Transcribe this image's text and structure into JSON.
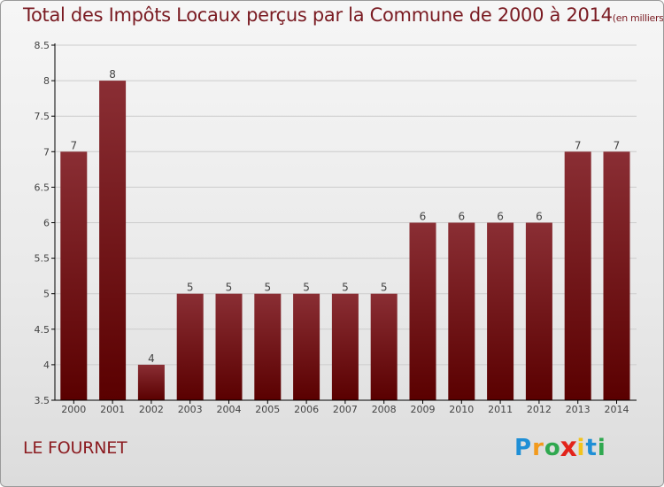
{
  "title": "Total des Impôts Locaux perçus par la Commune de 2000 à 2014",
  "title_unit": "(en milliers d'€)",
  "commune": "LE FOURNET",
  "logo": {
    "letters": [
      "P",
      "r",
      "o",
      "x",
      "i",
      "t",
      "i"
    ],
    "colors": [
      "#1f8fd6",
      "#f29a1c",
      "#2fa84f",
      "#e2231a",
      "#f2c31c",
      "#1f8fd6",
      "#2fa84f"
    ]
  },
  "colors": {
    "bar_top": "#8a2e34",
    "bar_bottom": "#5a0000",
    "axis": "#000000",
    "grid": "#cccccc",
    "text": "#444444"
  },
  "chart_data": {
    "type": "bar",
    "title": "Total des Impôts Locaux perçus par la Commune de 2000 à 2014",
    "xlabel": "",
    "ylabel": "",
    "categories": [
      "2000",
      "2001",
      "2002",
      "2003",
      "2004",
      "2005",
      "2006",
      "2007",
      "2008",
      "2009",
      "2010",
      "2011",
      "2012",
      "2013",
      "2014"
    ],
    "values": [
      7,
      8,
      4,
      5,
      5,
      5,
      5,
      5,
      5,
      6,
      6,
      6,
      6,
      7,
      7
    ],
    "labels": [
      "7",
      "8",
      "4",
      "5",
      "5",
      "5",
      "5",
      "5",
      "5",
      "6",
      "6",
      "6",
      "6",
      "7",
      "7"
    ],
    "ylim": [
      3.5,
      8.5
    ],
    "yticks": [
      3.5,
      4,
      4.5,
      5,
      5.5,
      6,
      6.5,
      7,
      7.5,
      8,
      8.5
    ],
    "ytick_labels": [
      "3.5",
      "4",
      "4.5",
      "5",
      "5.5",
      "6",
      "6.5",
      "7",
      "7.5",
      "8",
      "8.5"
    ],
    "grid": true
  }
}
